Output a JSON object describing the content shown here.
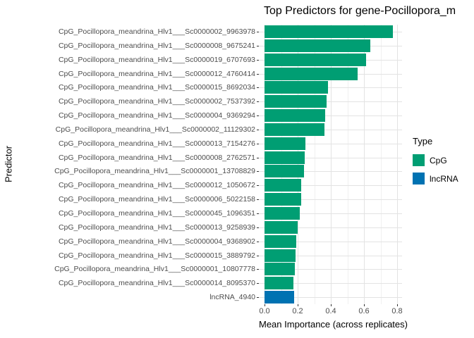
{
  "colors": {
    "cpg": "#009E73",
    "lncrna": "#0072B2",
    "grid_major": "#e3e3e3",
    "grid_minor": "#f0f0f0",
    "tick_mark": "#333333",
    "axis_text": "#4d4d4d",
    "text": "#000000",
    "background": "#ffffff"
  },
  "chart_data": {
    "type": "bar",
    "orientation": "horizontal",
    "title": "Top Predictors for gene-Pocillopora_m",
    "xlabel": "Mean Importance (across replicates)",
    "ylabel": "Predictor",
    "xlim": [
      0,
      0.85
    ],
    "x_ticks": [
      0.0,
      0.2,
      0.4,
      0.6,
      0.8
    ],
    "x_tick_labels": [
      "0.0",
      "0.2",
      "0.4",
      "0.6",
      "0.8"
    ],
    "grid": true,
    "legend_position": "right",
    "legend": {
      "title": "Type",
      "entries": [
        {
          "label": "CpG",
          "color": "#009E73"
        },
        {
          "label": "lncRNA",
          "color": "#0072B2"
        }
      ]
    },
    "categories": [
      "CpG_Pocillopora_meandrina_Hlv1___Sc0000002_9963978",
      "CpG_Pocillopora_meandrina_Hlv1___Sc0000008_9675241",
      "CpG_Pocillopora_meandrina_Hlv1___Sc0000019_6707693",
      "CpG_Pocillopora_meandrina_Hlv1___Sc0000012_4760414",
      "CpG_Pocillopora_meandrina_Hlv1___Sc0000015_8692034",
      "CpG_Pocillopora_meandrina_Hlv1___Sc0000002_7537392",
      "CpG_Pocillopora_meandrina_Hlv1___Sc0000004_9369294",
      "CpG_Pocillopora_meandrina_Hlv1___Sc0000002_11129302",
      "CpG_Pocillopora_meandrina_Hlv1___Sc0000013_7154276",
      "CpG_Pocillopora_meandrina_Hlv1___Sc0000008_2762571",
      "CpG_Pocillopora_meandrina_Hlv1___Sc0000001_13708829",
      "CpG_Pocillopora_meandrina_Hlv1___Sc0000012_1050672",
      "CpG_Pocillopora_meandrina_Hlv1___Sc0000006_5022158",
      "CpG_Pocillopora_meandrina_Hlv1___Sc0000045_1096351",
      "CpG_Pocillopora_meandrina_Hlv1___Sc0000013_9258939",
      "CpG_Pocillopora_meandrina_Hlv1___Sc0000004_9368902",
      "CpG_Pocillopora_meandrina_Hlv1___Sc0000015_3889792",
      "CpG_Pocillopora_meandrina_Hlv1___Sc0000001_10807778",
      "CpG_Pocillopora_meandrina_Hlv1___Sc0000014_8095370",
      "lncRNA_4940"
    ],
    "values": [
      0.774,
      0.64,
      0.611,
      0.561,
      0.383,
      0.374,
      0.367,
      0.361,
      0.247,
      0.243,
      0.239,
      0.221,
      0.219,
      0.213,
      0.201,
      0.19,
      0.189,
      0.183,
      0.175,
      0.178
    ],
    "types": [
      "CpG",
      "CpG",
      "CpG",
      "CpG",
      "CpG",
      "CpG",
      "CpG",
      "CpG",
      "CpG",
      "CpG",
      "CpG",
      "CpG",
      "CpG",
      "CpG",
      "CpG",
      "CpG",
      "CpG",
      "CpG",
      "CpG",
      "lncRNA"
    ]
  }
}
